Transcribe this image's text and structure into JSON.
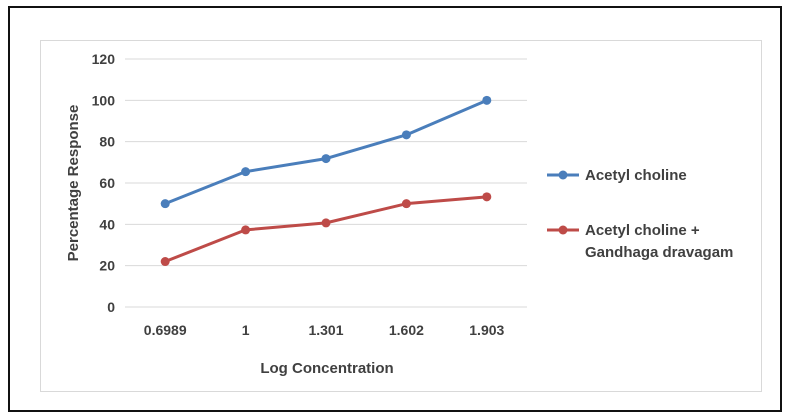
{
  "chart_data": {
    "type": "line",
    "title": "",
    "xlabel": "Log Concentration",
    "ylabel": "Percentage Response",
    "categories": [
      "0.6989",
      "1",
      "1.301",
      "1.602",
      "1.903"
    ],
    "ylim": [
      0,
      120
    ],
    "yticks": [
      "0",
      "20",
      "40",
      "60",
      "80",
      "100",
      "120"
    ],
    "grid": true,
    "legend_position": "right",
    "series": [
      {
        "name": "Acetyl choline",
        "name_lines": [
          "Acetyl choline"
        ],
        "color": "#4a7ebb",
        "values": [
          50,
          65.5,
          71.8,
          83.3,
          100
        ]
      },
      {
        "name": "Acetyl choline + Gandhaga dravagam",
        "name_lines": [
          "Acetyl choline +",
          "Gandhaga dravagam"
        ],
        "color": "#be4b48",
        "values": [
          22,
          37.3,
          40.7,
          50,
          53.3
        ]
      }
    ]
  }
}
